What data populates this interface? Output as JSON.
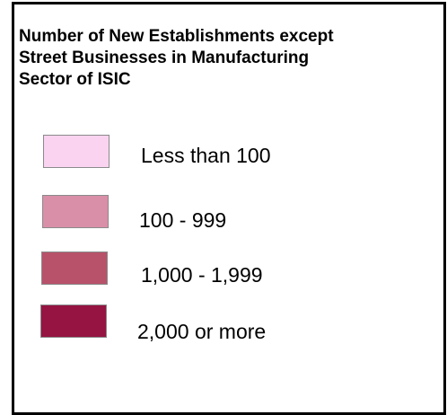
{
  "legend": {
    "title_lines": [
      "Number of New Establishments except",
      "Street Businesses in Manufacturing",
      "Sector of ISIC"
    ],
    "items": [
      {
        "label": "Less than 100",
        "color": "#f9d3f0"
      },
      {
        "label": "100 - 999",
        "color": "#da8fa8"
      },
      {
        "label": "1,000 - 1,999",
        "color": "#b8526a"
      },
      {
        "label": "2,000 or more",
        "color": "#951442"
      }
    ]
  }
}
